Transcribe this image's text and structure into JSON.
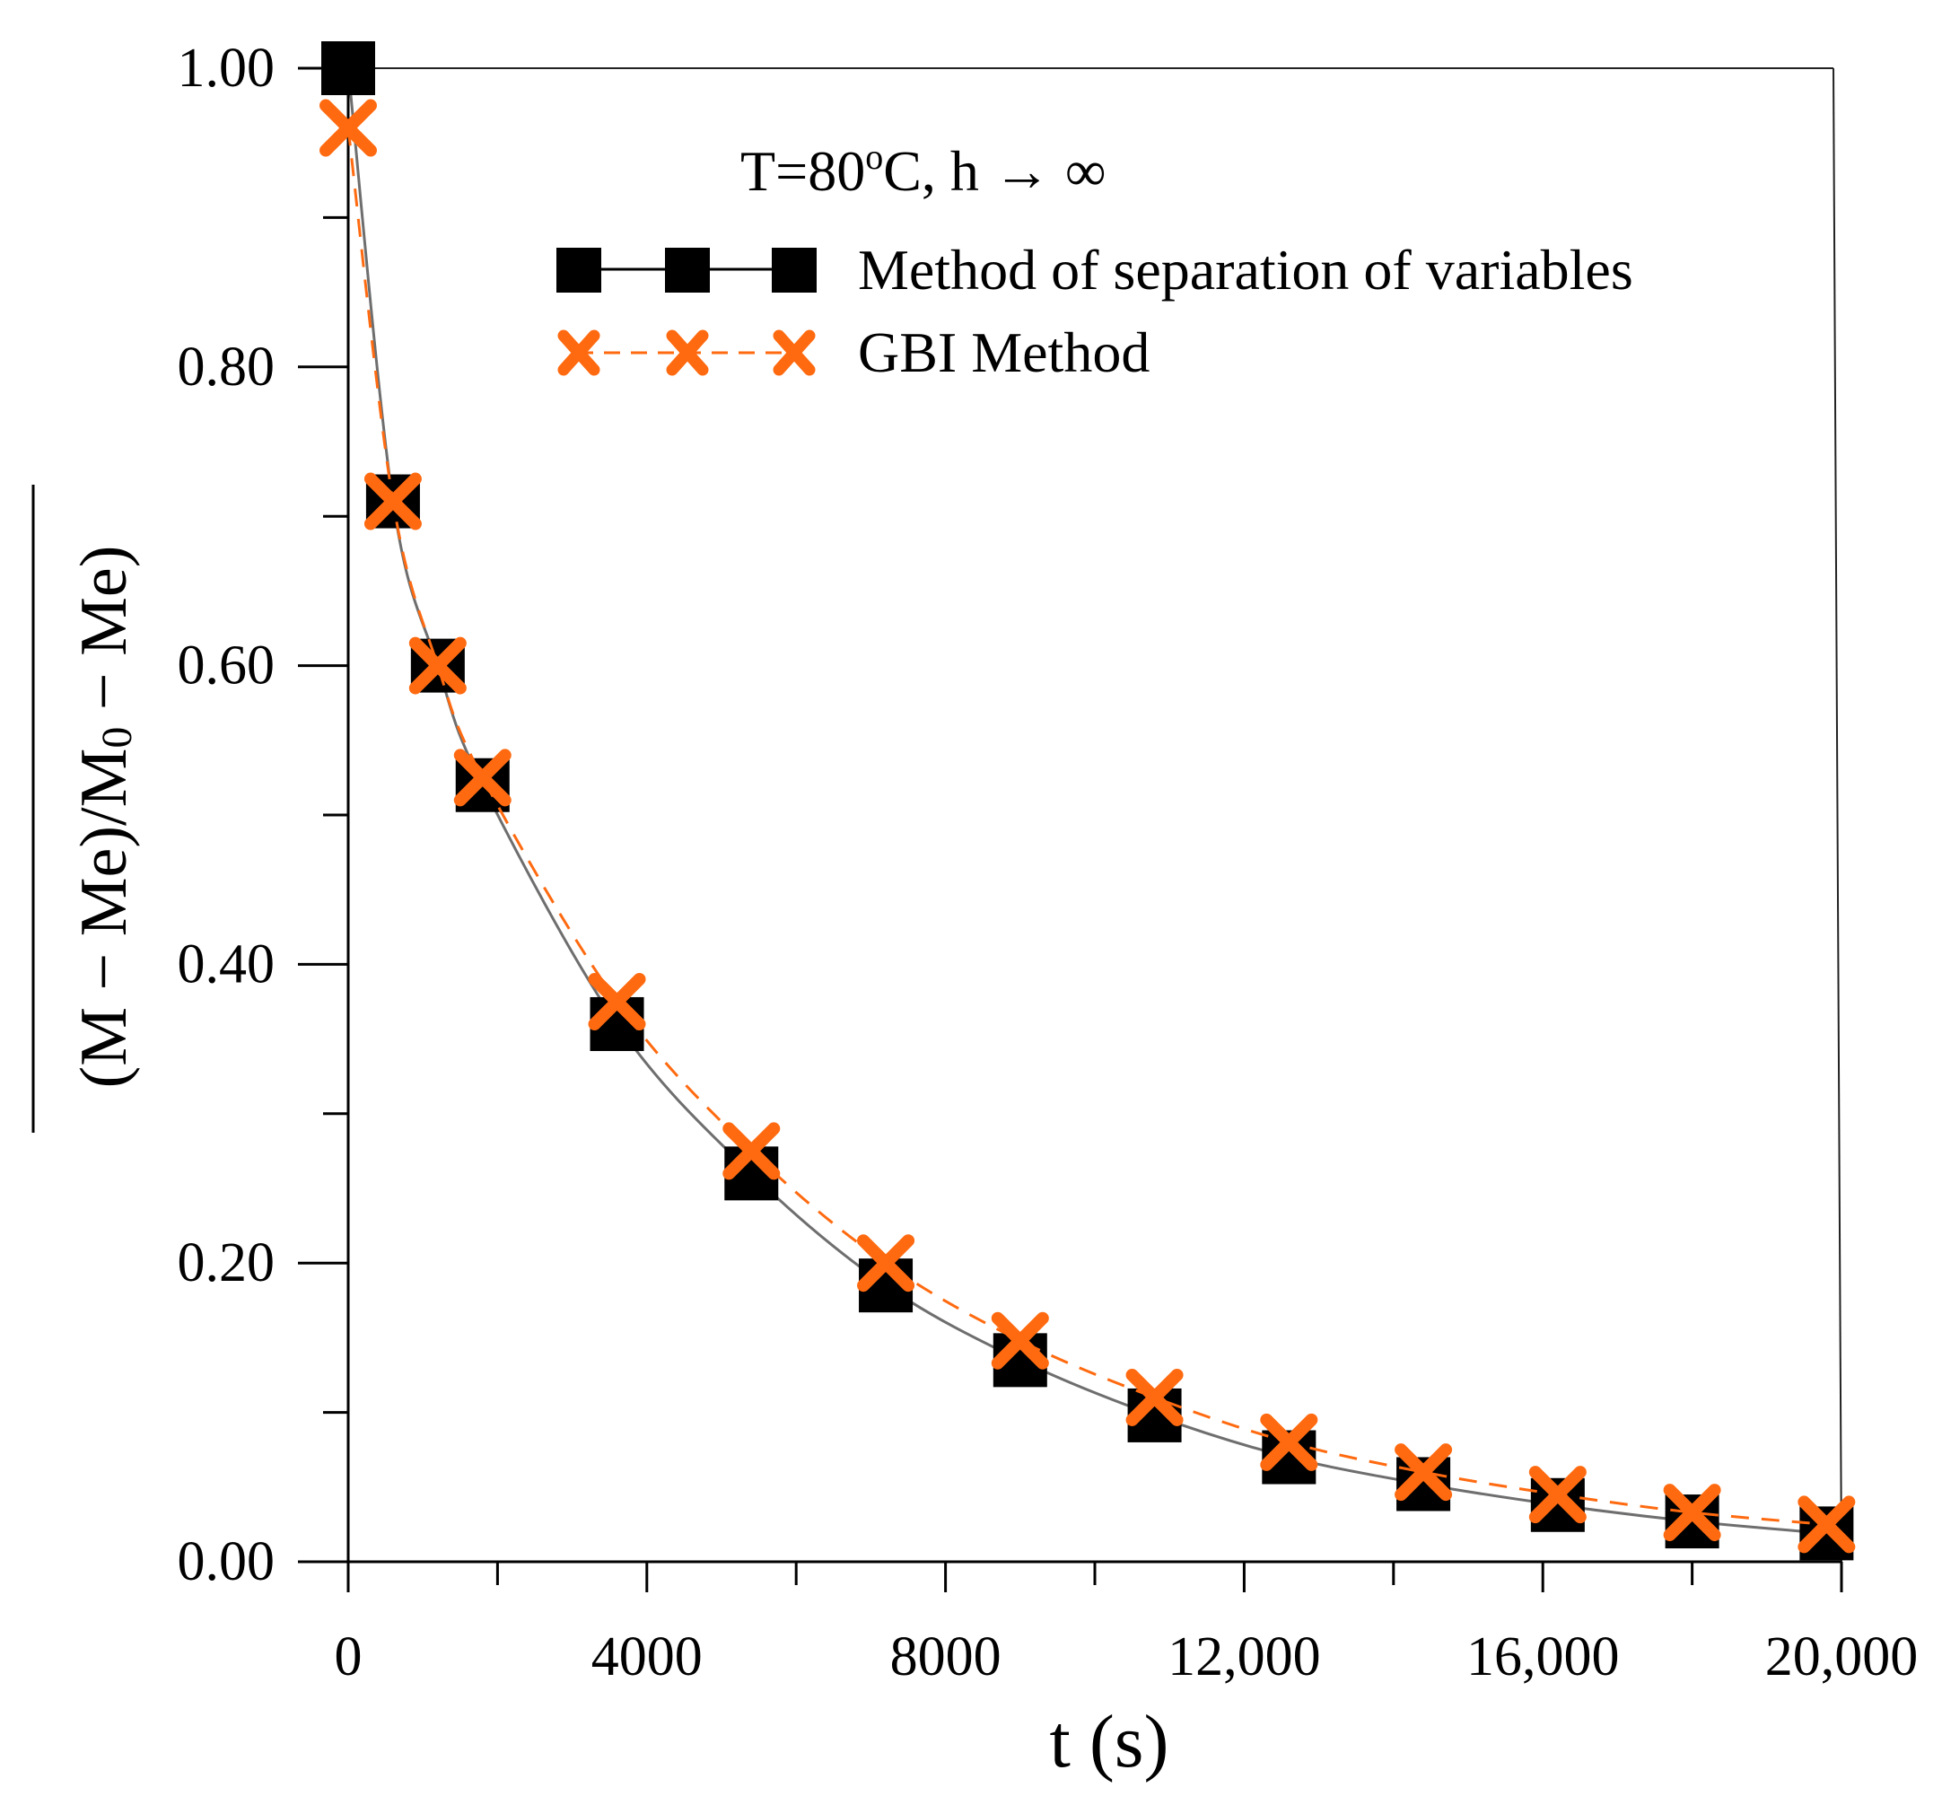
{
  "chart_data": {
    "type": "line",
    "title": "",
    "annotation": "T=80oC, h → ∞",
    "annotation_parts": {
      "prefix": "T=80",
      "superscript": "o",
      "suffix": "C, h → ∞"
    },
    "xlabel": "t (s)",
    "ylabel": "(M − Me)/M0 − Me)",
    "ylabel_parts": {
      "part1": "(M − Me)/M",
      "subscript": "0",
      "part2": " − Me)"
    },
    "xlim": [
      0,
      20000
    ],
    "ylim": [
      0,
      1.0
    ],
    "x_ticks": [
      0,
      4000,
      8000,
      12000,
      16000,
      20000
    ],
    "x_tick_labels": [
      "0",
      "4000",
      "8000",
      "12,000",
      "16,000",
      "20,000"
    ],
    "x_minor_ticks": [
      2000,
      6000,
      10000,
      14000,
      18000
    ],
    "y_ticks": [
      0.0,
      0.2,
      0.4,
      0.6,
      0.8,
      1.0
    ],
    "y_tick_labels": [
      "0.00",
      "0.20",
      "0.40",
      "0.60",
      "0.80",
      "1.00"
    ],
    "y_minor_ticks": [
      0.1,
      0.3,
      0.5,
      0.7,
      0.9
    ],
    "grid": false,
    "legend_position": "top-right",
    "series": [
      {
        "name": "Method of separation of variables",
        "style": "solid line with filled square markers",
        "color": "#000000",
        "line_color": "#6e6e6e",
        "x": [
          0,
          600,
          1200,
          1800,
          3600,
          5400,
          7200,
          9000,
          10800,
          12600,
          14400,
          16200,
          18000,
          19800
        ],
        "values": [
          1.0,
          0.71,
          0.6,
          0.52,
          0.36,
          0.26,
          0.185,
          0.135,
          0.098,
          0.07,
          0.052,
          0.038,
          0.027,
          0.019
        ]
      },
      {
        "name": "GBI Method",
        "style": "dashed line with x markers",
        "color": "#ff6a10",
        "line_color": "#ff6a10",
        "x": [
          0,
          600,
          1200,
          1800,
          3600,
          5400,
          7200,
          9000,
          10800,
          12600,
          14400,
          16200,
          18000,
          19800
        ],
        "values": [
          0.96,
          0.71,
          0.6,
          0.525,
          0.375,
          0.275,
          0.2,
          0.148,
          0.11,
          0.08,
          0.06,
          0.045,
          0.033,
          0.025
        ]
      }
    ]
  }
}
